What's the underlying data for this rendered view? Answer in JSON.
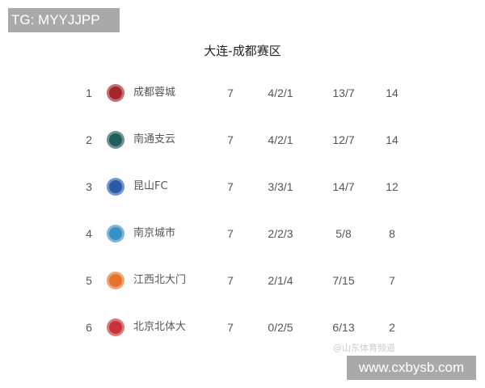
{
  "watermark_tag": "TG: MYYJJPP",
  "title": "大连-成都赛区",
  "rows": [
    {
      "rank": "1",
      "team": "成都蓉城",
      "played": "7",
      "wdl": "4/2/1",
      "goals": "13/7",
      "points": "14",
      "logo_color": "#a3262b"
    },
    {
      "rank": "2",
      "team": "南通支云",
      "played": "7",
      "wdl": "4/2/1",
      "goals": "12/7",
      "points": "14",
      "logo_color": "#1f5e5a"
    },
    {
      "rank": "3",
      "team": "昆山FC",
      "played": "7",
      "wdl": "3/3/1",
      "goals": "14/7",
      "points": "12",
      "logo_color": "#2a5aa8"
    },
    {
      "rank": "4",
      "team": "南京城市",
      "played": "7",
      "wdl": "2/2/3",
      "goals": "5/8",
      "points": "8",
      "logo_color": "#3a8fc4"
    },
    {
      "rank": "5",
      "team": "江西北大门",
      "played": "7",
      "wdl": "2/1/4",
      "goals": "7/15",
      "points": "7",
      "logo_color": "#e5732e"
    },
    {
      "rank": "6",
      "team": "北京北体大",
      "played": "7",
      "wdl": "0/2/5",
      "goals": "6/13",
      "points": "2",
      "logo_color": "#c8333a"
    }
  ],
  "source_watermark": "@山东体育频道",
  "site_watermark": "www.cxbysb.com"
}
